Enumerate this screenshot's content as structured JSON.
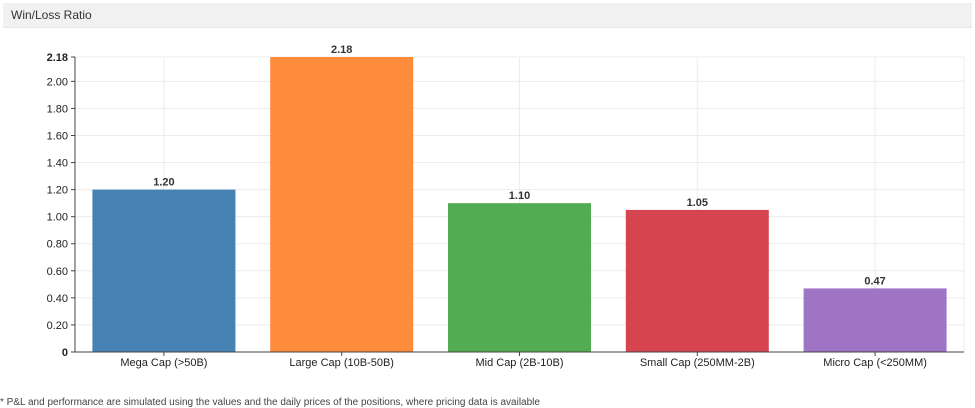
{
  "panel": {
    "title": "Win/Loss Ratio"
  },
  "footnote": "* P&L and performance are simulated using the values and the daily prices of the positions, where pricing data is available",
  "chart_data": {
    "type": "bar",
    "title": "",
    "xlabel": "",
    "ylabel": "",
    "categories": [
      "Mega Cap (>50B)",
      "Large Cap (10B-50B)",
      "Mid Cap (2B-10B)",
      "Small Cap (250MM-2B)",
      "Micro Cap (<250MM)"
    ],
    "values": [
      1.2,
      2.18,
      1.1,
      1.05,
      0.47
    ],
    "data_labels": [
      "1.20",
      "2.18",
      "1.10",
      "1.05",
      "0.47"
    ],
    "colors": [
      "#4682b4",
      "#ff8c3a",
      "#52ad52",
      "#d6454f",
      "#a074c4"
    ],
    "ylim": [
      0,
      2.18
    ],
    "yticks": [
      0,
      0.2,
      0.4,
      0.6,
      0.8,
      1.0,
      1.2,
      1.4,
      1.6,
      1.8,
      2.0,
      2.18
    ],
    "ytick_labels": [
      "0",
      "0.20",
      "0.40",
      "0.60",
      "0.80",
      "1.00",
      "1.20",
      "1.40",
      "1.60",
      "1.80",
      "2.00",
      "2.18"
    ],
    "grid": true,
    "legend": "none"
  }
}
